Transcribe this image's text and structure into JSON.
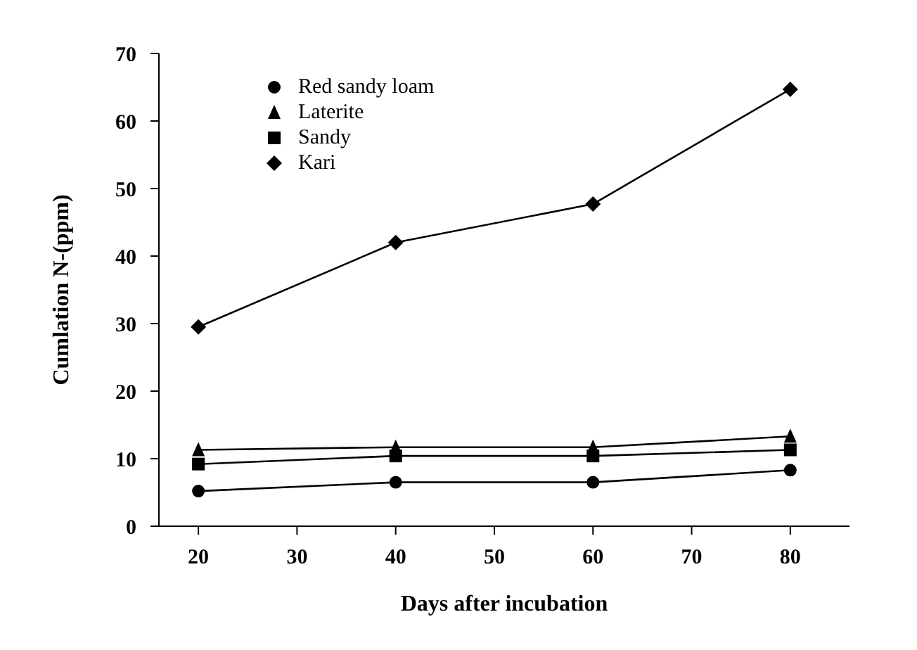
{
  "chart_data": {
    "type": "line",
    "xlabel": "Days after incubation",
    "ylabel": "Cumlation N-(ppm)",
    "x": [
      20,
      40,
      60,
      80
    ],
    "xlim": [
      16,
      86
    ],
    "xticks": [
      20,
      30,
      40,
      50,
      60,
      70,
      80
    ],
    "ylim": [
      0,
      70
    ],
    "yticks": [
      0,
      10,
      20,
      30,
      40,
      50,
      60,
      70
    ],
    "series": [
      {
        "name": "Red sandy loam",
        "color": "#000000",
        "marker": "circle",
        "values": [
          5.2,
          6.5,
          6.5,
          8.3
        ]
      },
      {
        "name": "Laterite",
        "color": "#000000",
        "marker": "triangle",
        "values": [
          11.3,
          11.7,
          11.7,
          13.3
        ]
      },
      {
        "name": "Sandy",
        "color": "#000000",
        "marker": "square",
        "values": [
          9.2,
          10.4,
          10.4,
          11.3
        ]
      },
      {
        "name": "Kari",
        "color": "#000000",
        "marker": "diamond",
        "values": [
          29.5,
          42,
          47.7,
          64.7
        ]
      }
    ],
    "grid": false,
    "legend": "top left",
    "line_style": "solid"
  }
}
